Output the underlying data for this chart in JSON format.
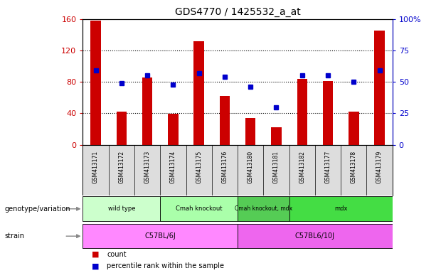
{
  "title": "GDS4770 / 1425532_a_at",
  "samples": [
    "GSM413171",
    "GSM413172",
    "GSM413173",
    "GSM413174",
    "GSM413175",
    "GSM413176",
    "GSM413180",
    "GSM413181",
    "GSM413182",
    "GSM413177",
    "GSM413178",
    "GSM413179"
  ],
  "counts": [
    158,
    42,
    86,
    39,
    132,
    62,
    34,
    22,
    84,
    81,
    42,
    145
  ],
  "percentile_ranks": [
    59,
    49,
    55,
    48,
    57,
    54,
    46,
    30,
    55,
    55,
    50,
    59
  ],
  "count_color": "#cc0000",
  "percentile_color": "#0000cc",
  "ylim_left": [
    0,
    160
  ],
  "ylim_right": [
    0,
    100
  ],
  "yticks_left": [
    0,
    40,
    80,
    120,
    160
  ],
  "ytick_labels_left": [
    "0",
    "40",
    "80",
    "120",
    "160"
  ],
  "yticks_right": [
    0,
    25,
    50,
    75,
    100
  ],
  "ytick_labels_right": [
    "0",
    "25",
    "50",
    "75",
    "100%"
  ],
  "genotype_groups": [
    {
      "label": "wild type",
      "start": 0,
      "end": 3,
      "color": "#ccffcc"
    },
    {
      "label": "Cmah knockout",
      "start": 3,
      "end": 6,
      "color": "#aaffaa"
    },
    {
      "label": "Cmah knockout, mdx",
      "start": 6,
      "end": 8,
      "color": "#55cc55"
    },
    {
      "label": "mdx",
      "start": 8,
      "end": 12,
      "color": "#44dd44"
    }
  ],
  "strain_groups": [
    {
      "label": "C57BL/6J",
      "start": 0,
      "end": 6,
      "color": "#ff88ff"
    },
    {
      "label": "C57BL6/10J",
      "start": 6,
      "end": 12,
      "color": "#ee66ee"
    }
  ],
  "bg_color": "#ffffff",
  "label_bg": "#dddddd",
  "grid_linestyle": "dotted"
}
